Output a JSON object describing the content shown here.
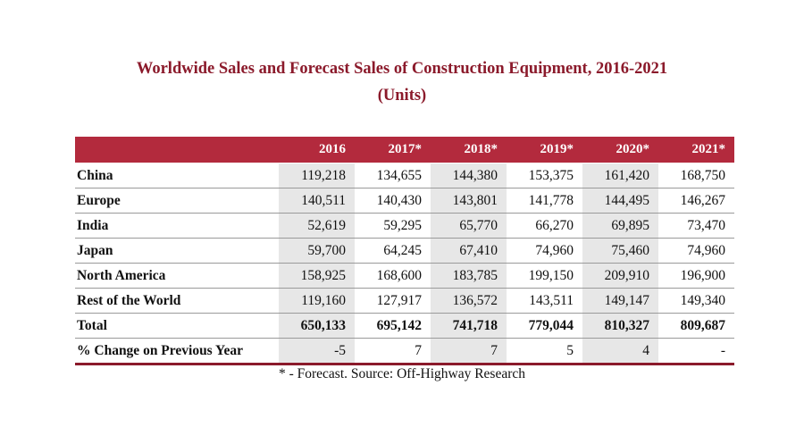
{
  "title_line1": "Worldwide Sales and Forecast Sales of Construction Equipment, 2016-2021",
  "title_line2": "(Units)",
  "columns": [
    "",
    "2016",
    "2017*",
    "2018*",
    "2019*",
    "2020*",
    "2021*"
  ],
  "rows": [
    {
      "label": "China",
      "values": [
        "119,218",
        "134,655",
        "144,380",
        "153,375",
        "161,420",
        "168,750"
      ]
    },
    {
      "label": "Europe",
      "values": [
        "140,511",
        "140,430",
        "143,801",
        "141,778",
        "144,495",
        "146,267"
      ]
    },
    {
      "label": "India",
      "values": [
        "52,619",
        "59,295",
        "65,770",
        "66,270",
        "69,895",
        "73,470"
      ]
    },
    {
      "label": "Japan",
      "values": [
        "59,700",
        "64,245",
        "67,410",
        "74,960",
        "75,460",
        "74,960"
      ]
    },
    {
      "label": "North America",
      "values": [
        "158,925",
        "168,600",
        "183,785",
        "199,150",
        "209,910",
        "196,900"
      ]
    },
    {
      "label": "Rest of the World",
      "values": [
        "119,160",
        "127,917",
        "136,572",
        "143,511",
        "149,147",
        "149,340"
      ]
    },
    {
      "label": "Total",
      "values": [
        "650,133",
        "695,142",
        "741,718",
        "779,044",
        "810,327",
        "809,687"
      ]
    },
    {
      "label": "% Change on Previous Year",
      "values": [
        "-5",
        "7",
        "7",
        "5",
        "4",
        "-"
      ]
    }
  ],
  "footnote": "* - Forecast. Source: Off-Highway Research",
  "colors": {
    "accent": "#8b1a2b",
    "header_bg": "#b32a3d",
    "shade": "#e7e7e7"
  }
}
